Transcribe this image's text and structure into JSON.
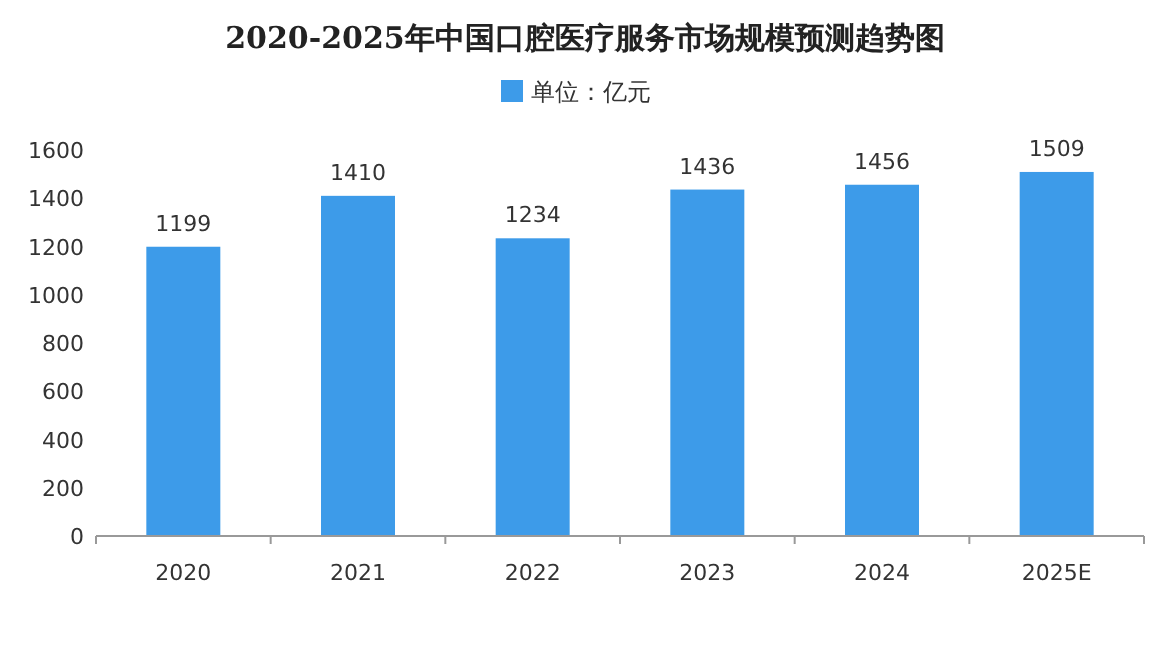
{
  "chart_data": {
    "type": "bar",
    "title": "2020-2025年中国口腔医疗服务市场规模预测趋势图",
    "categories": [
      "2020",
      "2021",
      "2022",
      "2023",
      "2024",
      "2025E"
    ],
    "series": [
      {
        "name": "单位：亿元",
        "color": "#3d9be9",
        "values": [
          1199,
          1410,
          1234,
          1436,
          1456,
          1509
        ]
      }
    ],
    "ylim": [
      0,
      1600
    ],
    "yticks": [
      0,
      200,
      400,
      600,
      800,
      1000,
      1200,
      1400,
      1600
    ],
    "data_labels": true,
    "legend": "top",
    "grid": false
  }
}
